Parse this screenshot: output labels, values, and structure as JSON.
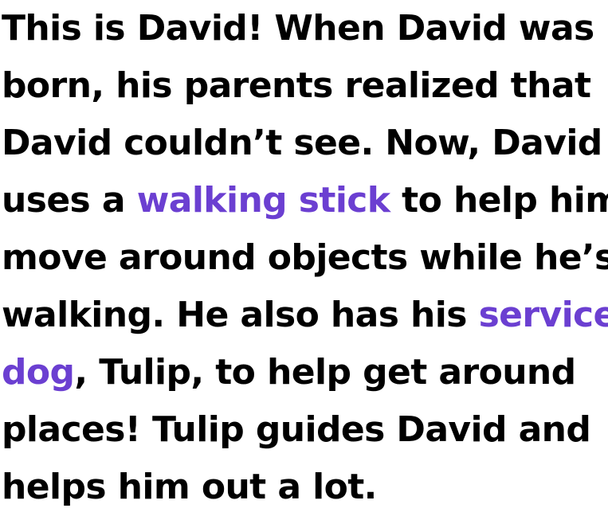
{
  "story": {
    "text_color": "#000000",
    "keyword_color": "#6b3fd1",
    "lines": [
      {
        "a": "This is David! When David was"
      },
      {
        "a": "born, his parents realized that"
      },
      {
        "a": "David couldn’t see. Now, David"
      },
      {
        "a": "uses a ",
        "kw": "walking stick",
        "b": " to help him"
      },
      {
        "a": "move around objects while he’s"
      },
      {
        "a": "walking. He also has his ",
        "kw": "service"
      },
      {
        "kw": "dog",
        "b": ", Tulip, to help get around"
      },
      {
        "a": "places! Tulip guides David and"
      },
      {
        "a": "helps him out a lot."
      }
    ]
  }
}
